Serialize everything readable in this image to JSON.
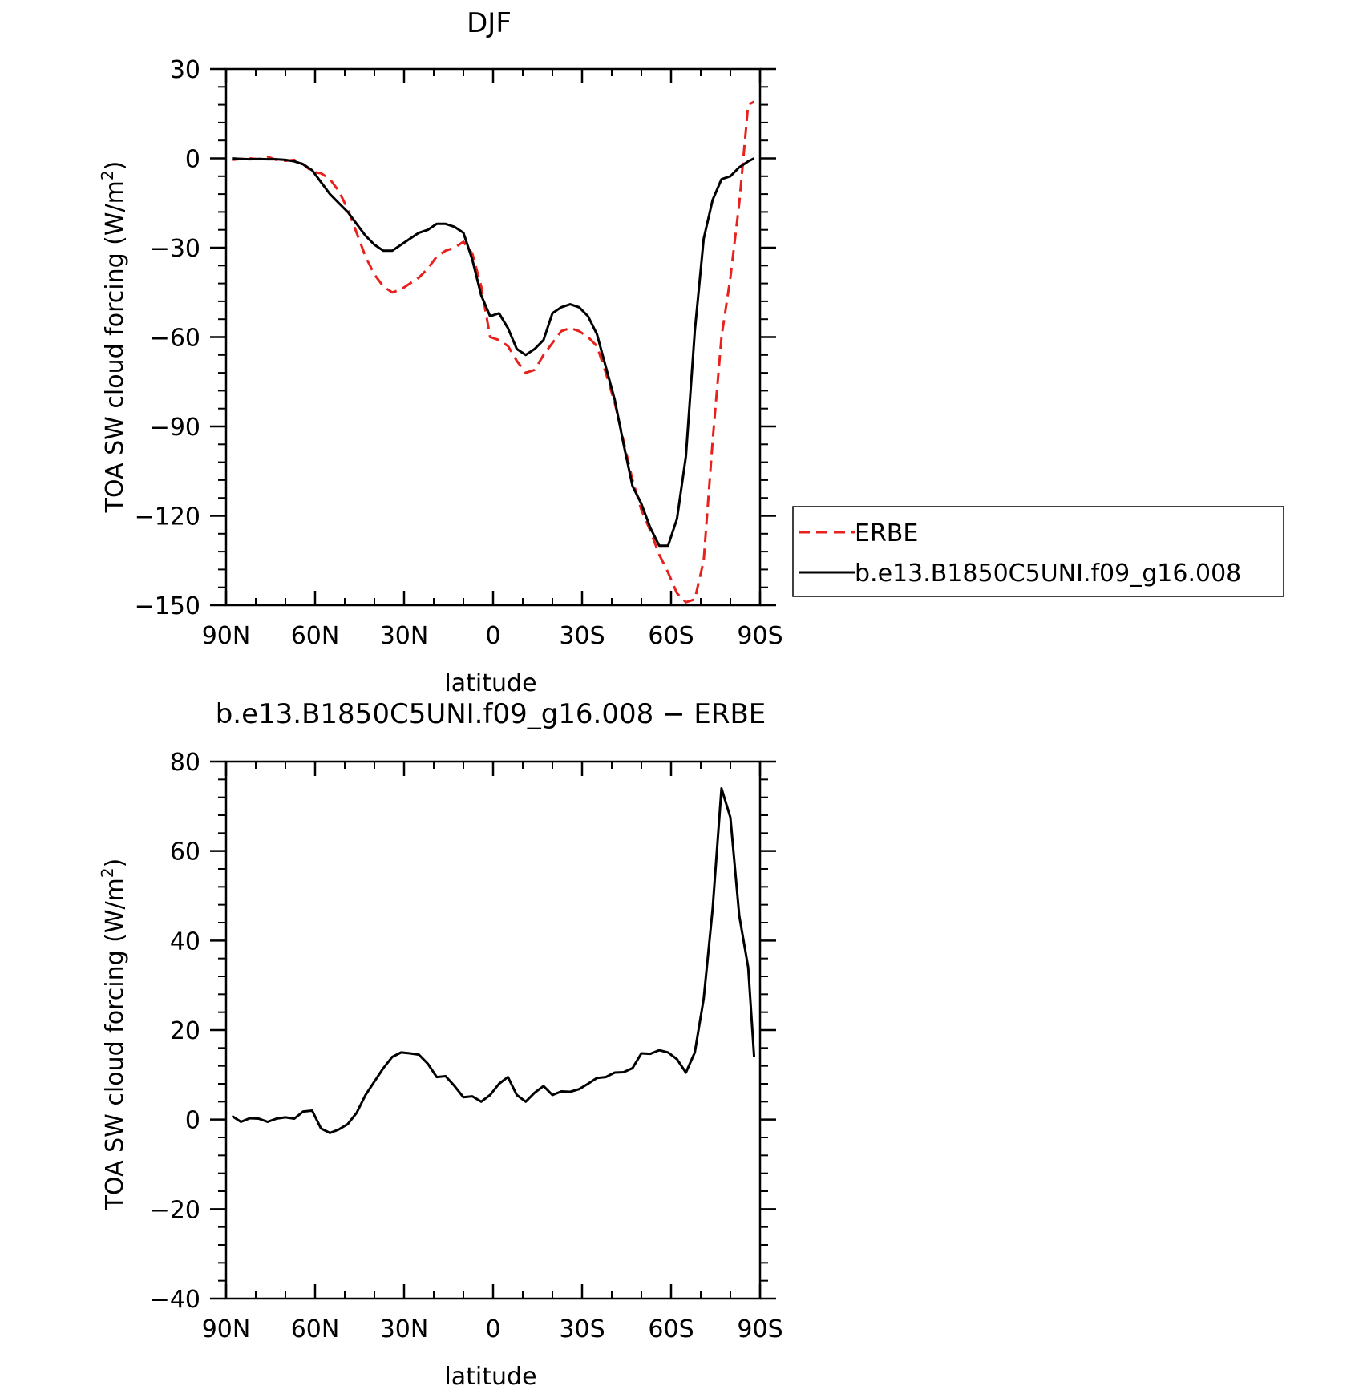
{
  "chart_data": [
    {
      "type": "line",
      "title": "DJF",
      "xlabel": "latitude",
      "ylabel": "TOA SW cloud forcing (W/m",
      "ylabel_sup": "2",
      "ylabel_close": ")",
      "xlim": [
        90,
        -90
      ],
      "ylim": [
        -150,
        30
      ],
      "x_ticks": [
        90,
        60,
        30,
        0,
        -30,
        -60,
        -90
      ],
      "x_tick_labels": [
        "90N",
        "60N",
        "30N",
        "0",
        "30S",
        "60S",
        "90S"
      ],
      "y_ticks": [
        30,
        0,
        -30,
        -60,
        -90,
        -120,
        -150
      ],
      "y_tick_labels": [
        "30",
        "0",
        "−30",
        "−60",
        "−90",
        "−120",
        "−150"
      ],
      "grid": false,
      "legend_position": "right",
      "series": [
        {
          "name": "ERBE",
          "color": "#e8211c",
          "dash": "dashed",
          "x": [
            88,
            85,
            82,
            79,
            76,
            73,
            70,
            67,
            64,
            61,
            58,
            55,
            52,
            49,
            46,
            43,
            40,
            37,
            34,
            31,
            28,
            25,
            22,
            19,
            16,
            13,
            10,
            7,
            4,
            1,
            -2,
            -5,
            -8,
            -11,
            -14,
            -17,
            -20,
            -23,
            -26,
            -29,
            -32,
            -35,
            -38,
            -41,
            -44,
            -47,
            -50,
            -53,
            -56,
            -59,
            -62,
            -65,
            -68,
            -71,
            -74,
            -77,
            -80,
            -83,
            -86,
            -88
          ],
          "y": [
            -0.5,
            -0.2,
            0,
            -0.3,
            0.5,
            -0.5,
            -0.8,
            -0.5,
            -2,
            -4.5,
            -5,
            -7,
            -11,
            -17,
            -25,
            -33,
            -39,
            -43,
            -45,
            -44,
            -42,
            -40,
            -37,
            -33,
            -31,
            -30,
            -28,
            -32,
            -43,
            -60,
            -61,
            -63,
            -68,
            -72,
            -71,
            -66,
            -62,
            -58,
            -57,
            -58,
            -60,
            -63,
            -72,
            -82,
            -95,
            -108,
            -118,
            -125,
            -133,
            -139,
            -146,
            -149,
            -148,
            -135,
            -95,
            -60,
            -40,
            -15,
            18,
            19
          ]
        },
        {
          "name": "b.e13.B1850C5UNI.f09_g16.008",
          "color": "#000000",
          "dash": "solid",
          "x": [
            88,
            85,
            82,
            79,
            76,
            73,
            70,
            67,
            64,
            61,
            58,
            55,
            52,
            49,
            46,
            43,
            40,
            37,
            34,
            31,
            28,
            25,
            22,
            19,
            16,
            13,
            10,
            7,
            4,
            1,
            -2,
            -5,
            -8,
            -11,
            -14,
            -17,
            -20,
            -23,
            -26,
            -29,
            -32,
            -35,
            -38,
            -41,
            -44,
            -47,
            -50,
            -53,
            -56,
            -59,
            -62,
            -65,
            -68,
            -71,
            -74,
            -77,
            -80,
            -83,
            -86,
            -88
          ],
          "y": [
            0,
            -0.2,
            -0.3,
            -0.2,
            -0.3,
            -0.3,
            -0.5,
            -1,
            -2,
            -4,
            -8,
            -12,
            -15,
            -18,
            -22,
            -26,
            -29,
            -31,
            -31,
            -29,
            -27,
            -25,
            -24,
            -22,
            -22,
            -23,
            -25,
            -34,
            -46,
            -53,
            -52,
            -57,
            -64,
            -66,
            -64,
            -61,
            -52,
            -50,
            -49,
            -50,
            -53,
            -59,
            -70,
            -81,
            -96,
            -110,
            -116,
            -124,
            -130,
            -130,
            -121,
            -100,
            -58,
            -27,
            -14,
            -7,
            -6,
            -3,
            -1,
            0
          ]
        }
      ]
    },
    {
      "type": "line",
      "title": "b.e13.B1850C5UNI.f09_g16.008 − ERBE",
      "xlabel": "latitude",
      "ylabel": "TOA SW cloud forcing (W/m",
      "ylabel_sup": "2",
      "ylabel_close": ")",
      "xlim": [
        90,
        -90
      ],
      "ylim": [
        -40,
        80
      ],
      "x_ticks": [
        90,
        60,
        30,
        0,
        -30,
        -60,
        -90
      ],
      "x_tick_labels": [
        "90N",
        "60N",
        "30N",
        "0",
        "30S",
        "60S",
        "90S"
      ],
      "y_ticks": [
        80,
        60,
        40,
        20,
        0,
        -20,
        -40
      ],
      "y_tick_labels": [
        "80",
        "60",
        "40",
        "20",
        "0",
        "−20",
        "−40"
      ],
      "grid": false,
      "series": [
        {
          "color": "#000000",
          "dash": "solid",
          "x": [
            88,
            85,
            82,
            79,
            76,
            73,
            70,
            67,
            64,
            61,
            58,
            55,
            52,
            49,
            46,
            43,
            40,
            37,
            34,
            31,
            28,
            25,
            22,
            19,
            16,
            13,
            10,
            7,
            4,
            1,
            -2,
            -5,
            -8,
            -11,
            -14,
            -17,
            -20,
            -23,
            -26,
            -29,
            -32,
            -35,
            -38,
            -41,
            -44,
            -47,
            -50,
            -53,
            -56,
            -59,
            -62,
            -65,
            -68,
            -71,
            -74,
            -77,
            -80,
            -83,
            -86,
            -88
          ],
          "y": [
            0.8,
            -0.5,
            0.3,
            0.2,
            -0.5,
            0.2,
            0.5,
            0.2,
            1.8,
            2,
            -2,
            -3,
            -2.2,
            -1,
            1.5,
            5.5,
            8.5,
            11.5,
            14,
            15,
            14.8,
            14.5,
            12.5,
            9.5,
            9.7,
            7.5,
            5,
            5.2,
            4,
            5.5,
            8,
            9.5,
            5.5,
            4,
            6,
            7.5,
            5.5,
            6.3,
            6.2,
            6.8,
            8,
            9.3,
            9.5,
            10.5,
            10.6,
            11.5,
            14.8,
            14.7,
            15.5,
            15,
            13.5,
            10.5,
            15,
            27,
            47,
            74,
            67.5,
            45.5,
            34,
            14
          ]
        }
      ]
    }
  ],
  "legend": {
    "items": [
      "ERBE",
      "b.e13.B1850C5UNI.f09_g16.008"
    ]
  }
}
